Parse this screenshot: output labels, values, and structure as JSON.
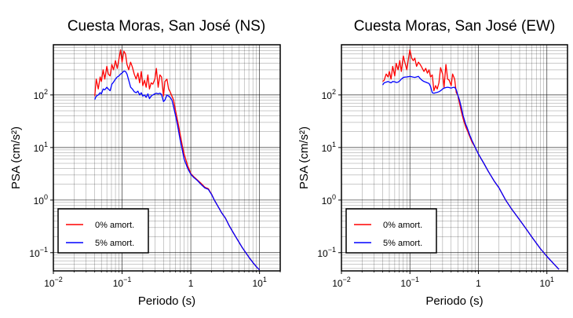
{
  "chart_data": [
    {
      "type": "line",
      "title": "Cuesta Moras, San José (NS)",
      "xlabel": "Periodo (s)",
      "ylabel": "PSA (cm/s²)",
      "xscale": "log",
      "yscale": "log",
      "xlim": [
        0.01,
        20
      ],
      "ylim": [
        0.045,
        900
      ],
      "xticks": [
        "10",
        "10",
        "1",
        "10"
      ],
      "xtick_exp": [
        "−2",
        "−1",
        "",
        "1"
      ],
      "yticks": [
        "10",
        "10",
        "10",
        "10"
      ],
      "ytick_exp": [
        "−1",
        "0",
        "1",
        "2"
      ],
      "grid": true,
      "legend_position": "bottom-left",
      "series": [
        {
          "name": "0% amort.",
          "color": "#ff0000",
          "x": [
            0.04,
            0.042,
            0.045,
            0.048,
            0.05,
            0.053,
            0.056,
            0.06,
            0.063,
            0.067,
            0.071,
            0.075,
            0.08,
            0.085,
            0.09,
            0.095,
            0.1,
            0.106,
            0.112,
            0.118,
            0.125,
            0.133,
            0.141,
            0.15,
            0.16,
            0.17,
            0.18,
            0.19,
            0.2,
            0.212,
            0.224,
            0.237,
            0.25,
            0.265,
            0.28,
            0.3,
            0.315,
            0.335,
            0.355,
            0.375,
            0.4,
            0.42,
            0.45,
            0.475,
            0.5,
            0.53,
            0.56,
            0.6,
            0.65,
            0.7,
            0.75,
            0.8,
            0.9,
            1.0,
            1.1,
            1.25,
            1.4,
            1.6,
            1.8,
            2.0,
            2.2,
            2.5,
            2.8,
            3.2,
            3.6,
            4.0,
            4.5,
            5.0,
            5.6,
            6.3,
            7.1,
            8.0,
            9.0,
            10.0
          ],
          "y": [
            95,
            200,
            130,
            220,
            180,
            300,
            200,
            350,
            250,
            230,
            380,
            300,
            450,
            320,
            480,
            720,
            420,
            680,
            600,
            380,
            300,
            420,
            340,
            250,
            200,
            260,
            170,
            280,
            150,
            190,
            140,
            240,
            130,
            170,
            160,
            200,
            320,
            140,
            240,
            220,
            95,
            180,
            200,
            130,
            115,
            95,
            80,
            50,
            30,
            18,
            11,
            7.5,
            4.5,
            3.2,
            2.8,
            2.4,
            2.1,
            1.75,
            1.65,
            1.3,
            1.0,
            0.75,
            0.58,
            0.45,
            0.33,
            0.26,
            0.2,
            0.16,
            0.125,
            0.1,
            0.08,
            0.065,
            0.054,
            0.047
          ]
        },
        {
          "name": "5% amort.",
          "color": "#0000ff",
          "x": [
            0.04,
            0.042,
            0.045,
            0.048,
            0.05,
            0.053,
            0.056,
            0.06,
            0.063,
            0.067,
            0.071,
            0.075,
            0.08,
            0.085,
            0.09,
            0.095,
            0.1,
            0.106,
            0.112,
            0.118,
            0.125,
            0.133,
            0.141,
            0.15,
            0.16,
            0.17,
            0.18,
            0.19,
            0.2,
            0.212,
            0.224,
            0.237,
            0.25,
            0.265,
            0.28,
            0.3,
            0.315,
            0.335,
            0.355,
            0.375,
            0.4,
            0.42,
            0.45,
            0.475,
            0.5,
            0.53,
            0.56,
            0.6,
            0.65,
            0.7,
            0.75,
            0.8,
            0.9,
            1.0,
            1.1,
            1.25,
            1.4,
            1.6,
            1.8,
            2.0,
            2.2,
            2.5,
            2.8,
            3.2,
            3.6,
            4.0,
            4.5,
            5.0,
            5.6,
            6.3,
            7.1,
            8.0,
            9.0,
            10.0
          ],
          "y": [
            82,
            95,
            100,
            110,
            105,
            130,
            125,
            140,
            130,
            120,
            160,
            175,
            200,
            220,
            230,
            250,
            260,
            285,
            280,
            250,
            190,
            140,
            130,
            115,
            110,
            118,
            100,
            110,
            95,
            100,
            90,
            105,
            85,
            95,
            100,
            105,
            108,
            105,
            108,
            102,
            75,
            80,
            100,
            95,
            90,
            80,
            60,
            40,
            24,
            14,
            9,
            6,
            4.0,
            3.1,
            2.7,
            2.35,
            2.0,
            1.7,
            1.6,
            1.28,
            1.0,
            0.75,
            0.58,
            0.45,
            0.33,
            0.26,
            0.2,
            0.16,
            0.125,
            0.1,
            0.08,
            0.065,
            0.054,
            0.047
          ]
        }
      ]
    },
    {
      "type": "line",
      "title": "Cuesta Moras, San José (EW)",
      "xlabel": "Periodo (s)",
      "ylabel": "PSA (cm/s²)",
      "xscale": "log",
      "yscale": "log",
      "xlim": [
        0.01,
        20
      ],
      "ylim": [
        0.045,
        900
      ],
      "xticks": [
        "10",
        "10",
        "1",
        "10"
      ],
      "xtick_exp": [
        "−2",
        "−1",
        "",
        "1"
      ],
      "yticks": [
        "10",
        "10",
        "10",
        "10"
      ],
      "ytick_exp": [
        "−1",
        "0",
        "1",
        "2"
      ],
      "grid": true,
      "legend_position": "bottom-left",
      "series": [
        {
          "name": "0% amort.",
          "color": "#ff0000",
          "x": [
            0.04,
            0.042,
            0.045,
            0.048,
            0.05,
            0.053,
            0.056,
            0.06,
            0.063,
            0.067,
            0.071,
            0.075,
            0.08,
            0.085,
            0.09,
            0.095,
            0.1,
            0.106,
            0.112,
            0.118,
            0.125,
            0.133,
            0.141,
            0.15,
            0.16,
            0.17,
            0.18,
            0.19,
            0.2,
            0.212,
            0.224,
            0.237,
            0.25,
            0.265,
            0.28,
            0.3,
            0.315,
            0.335,
            0.355,
            0.375,
            0.4,
            0.42,
            0.45,
            0.475,
            0.5,
            0.53,
            0.56,
            0.6,
            0.65,
            0.7,
            0.75,
            0.8,
            0.9,
            1.0,
            1.2,
            1.4,
            1.7,
            2.0,
            2.5,
            3.0,
            4.0,
            5.0,
            6.0,
            8.0,
            10.0,
            12.5,
            15.0
          ],
          "y": [
            180,
            190,
            250,
            220,
            280,
            200,
            350,
            230,
            400,
            300,
            450,
            280,
            550,
            400,
            300,
            480,
            720,
            500,
            450,
            500,
            350,
            420,
            380,
            330,
            280,
            320,
            260,
            300,
            220,
            240,
            120,
            150,
            130,
            170,
            330,
            250,
            140,
            380,
            200,
            190,
            150,
            250,
            200,
            110,
            100,
            70,
            50,
            35,
            25,
            20,
            16,
            13,
            10,
            7.5,
            5.0,
            3.5,
            2.3,
            1.7,
            1.0,
            0.7,
            0.42,
            0.28,
            0.2,
            0.12,
            0.085,
            0.062,
            0.048
          ]
        },
        {
          "name": "5% amort.",
          "color": "#0000ff",
          "x": [
            0.04,
            0.042,
            0.045,
            0.048,
            0.05,
            0.053,
            0.056,
            0.06,
            0.063,
            0.067,
            0.071,
            0.075,
            0.08,
            0.085,
            0.09,
            0.095,
            0.1,
            0.106,
            0.112,
            0.118,
            0.125,
            0.133,
            0.141,
            0.15,
            0.16,
            0.17,
            0.18,
            0.19,
            0.2,
            0.212,
            0.224,
            0.237,
            0.25,
            0.265,
            0.28,
            0.3,
            0.315,
            0.335,
            0.355,
            0.375,
            0.4,
            0.42,
            0.45,
            0.475,
            0.5,
            0.53,
            0.56,
            0.6,
            0.65,
            0.7,
            0.75,
            0.8,
            0.9,
            1.0,
            1.2,
            1.4,
            1.7,
            2.0,
            2.5,
            3.0,
            4.0,
            5.0,
            6.0,
            8.0,
            10.0,
            12.5,
            15.0
          ],
          "y": [
            155,
            170,
            175,
            180,
            175,
            170,
            180,
            178,
            172,
            175,
            185,
            200,
            215,
            218,
            220,
            222,
            225,
            222,
            218,
            215,
            220,
            225,
            205,
            190,
            180,
            175,
            170,
            165,
            145,
            110,
            108,
            110,
            112,
            115,
            120,
            130,
            135,
            138,
            140,
            138,
            135,
            138,
            140,
            125,
            100,
            80,
            60,
            40,
            28,
            22,
            17,
            14,
            10,
            7.5,
            5.0,
            3.5,
            2.3,
            1.7,
            1.0,
            0.7,
            0.42,
            0.28,
            0.2,
            0.12,
            0.085,
            0.062,
            0.048
          ]
        }
      ]
    }
  ]
}
